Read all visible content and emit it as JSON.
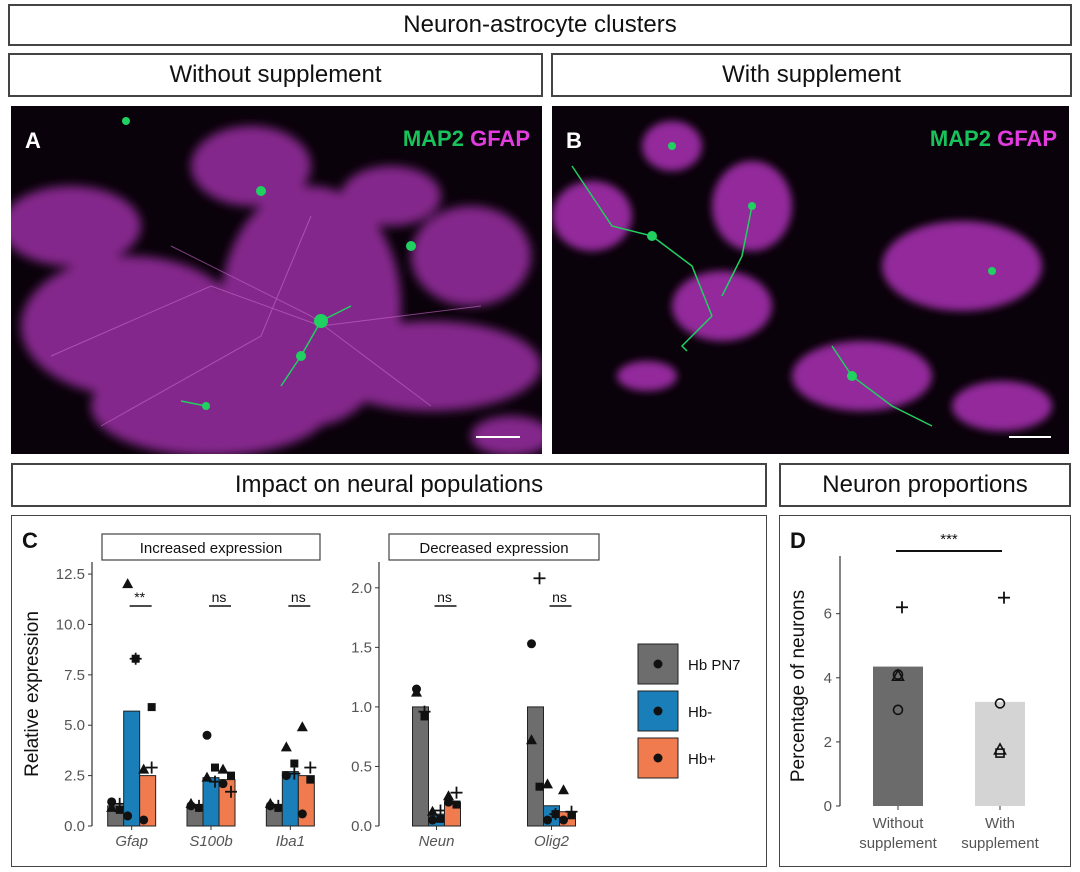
{
  "figure": {
    "main_title": "Neuron-astrocyte clusters",
    "without_supplement_header": "Without supplement",
    "with_supplement_header": "With supplement",
    "impact_header": "Impact on neural populations",
    "neuron_header": "Neuron proportions"
  },
  "panels": {
    "a": {
      "label": "A",
      "stain1": "MAP2",
      "stain2": "GFAP"
    },
    "b": {
      "label": "B",
      "stain1": "MAP2",
      "stain2": "GFAP"
    },
    "c": {
      "label": "C"
    },
    "d": {
      "label": "D"
    }
  },
  "colors": {
    "hb_pn7": "#6d6d6d",
    "hb_minus": "#1a7fb8",
    "hb_plus": "#f07b4f",
    "without": "#6b6b6b",
    "with": "#d4d4d4",
    "green": "#17c35a",
    "magenta": "#e23ce0"
  },
  "chart_data": [
    {
      "type": "bar",
      "facet": "Increased expression",
      "ylabel": "Relative expression",
      "ylim": [
        0,
        13
      ],
      "yticks": [
        "0.0",
        "2.5",
        "5.0",
        "7.5",
        "10.0",
        "12.5"
      ],
      "categories": [
        "Gfap",
        "S100b",
        "Iba1"
      ],
      "series": [
        {
          "name": "Hb PN7",
          "values": [
            1.0,
            1.0,
            1.0
          ]
        },
        {
          "name": "Hb-",
          "values": [
            5.7,
            2.4,
            2.7
          ]
        },
        {
          "name": "Hb+",
          "values": [
            2.5,
            2.3,
            2.5
          ]
        }
      ],
      "significance": [
        "**",
        "ns",
        "ns"
      ]
    },
    {
      "type": "bar",
      "facet": "Decreased expression",
      "ylim": [
        0,
        2.2
      ],
      "yticks": [
        "0.0",
        "0.5",
        "1.0",
        "1.5",
        "2.0"
      ],
      "categories": [
        "Neun",
        "Olig2"
      ],
      "series": [
        {
          "name": "Hb PN7",
          "values": [
            1.0,
            1.0
          ]
        },
        {
          "name": "Hb-",
          "values": [
            0.1,
            0.17
          ]
        },
        {
          "name": "Hb+",
          "values": [
            0.2,
            0.12
          ]
        }
      ],
      "significance": [
        "ns",
        "ns"
      ]
    },
    {
      "type": "bar",
      "ylabel": "Percentage of neurons",
      "ylim": [
        0,
        7.8
      ],
      "yticks": [
        "0",
        "2",
        "4",
        "6"
      ],
      "categories": [
        "Without supplement",
        "With supplement"
      ],
      "category_lines": [
        [
          "Without",
          "supplement"
        ],
        [
          "With",
          "supplement"
        ]
      ],
      "values": [
        4.35,
        3.25
      ],
      "points": [
        [
          6.2,
          4.1,
          4.05,
          3.0
        ],
        [
          6.5,
          3.2,
          1.75,
          1.65
        ]
      ],
      "significance": [
        "***"
      ]
    }
  ],
  "legend": {
    "entries": [
      {
        "label": "Hb PN7",
        "color": "#6d6d6d"
      },
      {
        "label": "Hb-",
        "color": "#1a7fb8"
      },
      {
        "label": "Hb+",
        "color": "#f07b4f"
      }
    ]
  }
}
